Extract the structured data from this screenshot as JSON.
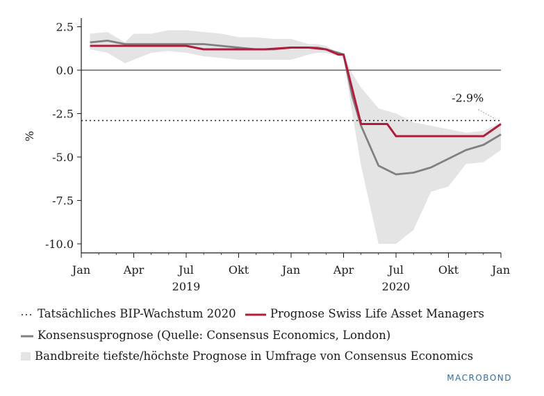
{
  "chart_data": {
    "type": "line",
    "ylabel": "%",
    "ylim": [
      -10.5,
      2.8
    ],
    "yticks": [
      2.5,
      0.0,
      -2.5,
      -5.0,
      -7.5,
      -10.0
    ],
    "ytick_labels": [
      "2.5",
      "0.0",
      "-2.5",
      "-5.0",
      "-7.5",
      "-10.0"
    ],
    "x_axis": {
      "start": "2019-01",
      "end": "2021-01",
      "month_ticks": [
        {
          "m": 0,
          "label": "Jan"
        },
        {
          "m": 3,
          "label": "Apr"
        },
        {
          "m": 6,
          "label": "Jul"
        },
        {
          "m": 9,
          "label": "Okt"
        },
        {
          "m": 12,
          "label": "Jan"
        },
        {
          "m": 15,
          "label": "Apr"
        },
        {
          "m": 18,
          "label": "Jul"
        },
        {
          "m": 21,
          "label": "Okt"
        },
        {
          "m": 24,
          "label": "Jan"
        }
      ],
      "year_labels": [
        {
          "m": 6,
          "label": "2019"
        },
        {
          "m": 18,
          "label": "2020"
        }
      ]
    },
    "annotation": {
      "label": "-2.9%",
      "value": -2.9
    },
    "series": [
      {
        "name": "Tatsächliches BIP-Wachstum 2020",
        "style": "dotted",
        "color": "#1a1a1a",
        "points": [
          [
            0,
            -2.9
          ],
          [
            24,
            -2.9
          ]
        ]
      },
      {
        "name": "Konsensusprognose (Quelle: Consensus Economics, London)",
        "style": "solid",
        "color": "#808080",
        "points": [
          [
            0.5,
            1.6
          ],
          [
            1.5,
            1.7
          ],
          [
            2.5,
            1.5
          ],
          [
            4,
            1.5
          ],
          [
            6,
            1.5
          ],
          [
            7,
            1.5
          ],
          [
            8,
            1.4
          ],
          [
            9,
            1.3
          ],
          [
            10,
            1.2
          ],
          [
            11,
            1.2
          ],
          [
            12,
            1.3
          ],
          [
            13,
            1.3
          ],
          [
            13.5,
            1.3
          ],
          [
            14,
            1.2
          ],
          [
            14.7,
            1.0
          ],
          [
            15,
            0.9
          ],
          [
            15.5,
            -1.5
          ],
          [
            16,
            -3.2
          ],
          [
            17,
            -5.5
          ],
          [
            18,
            -6.0
          ],
          [
            19,
            -5.9
          ],
          [
            20,
            -5.6
          ],
          [
            21,
            -5.1
          ],
          [
            22,
            -4.6
          ],
          [
            23,
            -4.3
          ],
          [
            24,
            -3.7
          ]
        ]
      },
      {
        "name": "Prognose Swiss Life Asset Managers",
        "style": "solid",
        "color": "#b01c3a",
        "points": [
          [
            0.5,
            1.4
          ],
          [
            4,
            1.4
          ],
          [
            6,
            1.4
          ],
          [
            7,
            1.2
          ],
          [
            9,
            1.2
          ],
          [
            10.5,
            1.2
          ],
          [
            12,
            1.3
          ],
          [
            13,
            1.3
          ],
          [
            14,
            1.2
          ],
          [
            14.7,
            0.9
          ],
          [
            15,
            0.9
          ],
          [
            16,
            -3.1
          ],
          [
            17,
            -3.1
          ],
          [
            17.5,
            -3.1
          ],
          [
            18,
            -3.8
          ],
          [
            22,
            -3.8
          ],
          [
            23,
            -3.8
          ],
          [
            24,
            -3.1
          ]
        ]
      },
      {
        "name": "Bandbreite tiefste/höchste Prognose in Umfrage von Consensus Economics",
        "style": "band",
        "color": "#e4e4e4",
        "upper": [
          [
            0.5,
            2.1
          ],
          [
            1.5,
            2.2
          ],
          [
            2.5,
            1.6
          ],
          [
            3,
            2.1
          ],
          [
            4,
            2.1
          ],
          [
            5,
            2.3
          ],
          [
            6,
            2.3
          ],
          [
            7,
            2.2
          ],
          [
            8,
            2.1
          ],
          [
            9,
            1.9
          ],
          [
            10,
            1.9
          ],
          [
            11,
            1.8
          ],
          [
            12,
            1.8
          ],
          [
            13,
            1.5
          ],
          [
            13.5,
            1.5
          ],
          [
            14,
            1.4
          ],
          [
            14.7,
            1.0
          ],
          [
            15,
            0.9
          ],
          [
            15.5,
            -0.2
          ],
          [
            16,
            -1.0
          ],
          [
            17,
            -2.2
          ],
          [
            18,
            -2.5
          ],
          [
            19,
            -3.0
          ],
          [
            20,
            -3.2
          ],
          [
            21,
            -3.4
          ],
          [
            22,
            -3.6
          ],
          [
            23,
            -3.5
          ],
          [
            24,
            -3.0
          ]
        ],
        "lower": [
          [
            0.5,
            1.2
          ],
          [
            1.5,
            1.0
          ],
          [
            2.5,
            0.4
          ],
          [
            3,
            0.6
          ],
          [
            4,
            1.0
          ],
          [
            5,
            1.1
          ],
          [
            6,
            1.0
          ],
          [
            7,
            0.8
          ],
          [
            8,
            0.7
          ],
          [
            9,
            0.6
          ],
          [
            10,
            0.6
          ],
          [
            11,
            0.6
          ],
          [
            12,
            0.6
          ],
          [
            13,
            0.9
          ],
          [
            13.5,
            1.0
          ],
          [
            14,
            1.0
          ],
          [
            14.7,
            0.8
          ],
          [
            15,
            0.7
          ],
          [
            15.5,
            -2.5
          ],
          [
            16,
            -5.5
          ],
          [
            17,
            -10.0
          ],
          [
            17.5,
            -10.0
          ],
          [
            18,
            -10.0
          ],
          [
            19,
            -9.2
          ],
          [
            20,
            -7.0
          ],
          [
            21,
            -6.7
          ],
          [
            22,
            -5.4
          ],
          [
            23,
            -5.3
          ],
          [
            24,
            -4.6
          ]
        ]
      }
    ]
  },
  "legend": {
    "actual": "Tatsächliches BIP-Wachstum 2020",
    "slam": "Prognose Swiss Life Asset Managers",
    "consensus": "Konsensusprognose (Quelle: Consensus Economics, London)",
    "band": "Bandbreite tiefste/höchste Prognose in Umfrage von Consensus Economics"
  },
  "brand": "MACROBOND"
}
